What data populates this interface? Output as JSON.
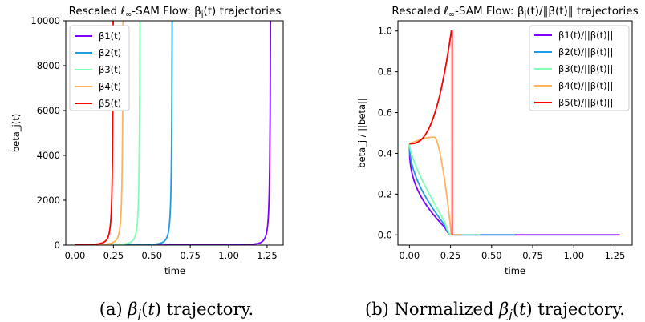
{
  "chart_data": [
    {
      "type": "line",
      "title": "Rescaled ℓ∞-SAM Flow: βj(t) trajectories",
      "xlabel": "time",
      "ylabel": "beta_j(t)",
      "xlim": [
        -0.06,
        1.355
      ],
      "ylim": [
        0,
        10000
      ],
      "xticks": [
        "0.00",
        "0.25",
        "0.50",
        "0.75",
        "1.00",
        "1.25"
      ],
      "yticks": [
        "0",
        "2000",
        "4000",
        "6000",
        "8000",
        "10000"
      ],
      "legend_position": "upper-left",
      "grid": false,
      "series": [
        {
          "name": "β1(t)",
          "color": "#7f00ff",
          "blowup": 1.28
        },
        {
          "name": "β2(t)",
          "color": "#1e9ce6",
          "blowup": 0.64
        },
        {
          "name": "β3(t)",
          "color": "#80ffb4",
          "blowup": 0.43
        },
        {
          "name": "β4(t)",
          "color": "#ffb360",
          "blowup": 0.32
        },
        {
          "name": "β5(t)",
          "color": "#ff0000",
          "blowup": 0.256
        }
      ]
    },
    {
      "type": "line",
      "title": "Rescaled ℓ∞-SAM Flow: βj(t)/‖β(t)‖ trajectories",
      "xlabel": "time",
      "ylabel": "beta_j / ||beta||",
      "xlim": [
        -0.07,
        1.355
      ],
      "ylim": [
        -0.05,
        1.05
      ],
      "xticks": [
        "0.00",
        "0.25",
        "0.50",
        "0.75",
        "1.00",
        "1.25"
      ],
      "yticks": [
        "0.0",
        "0.2",
        "0.4",
        "0.6",
        "0.8",
        "1.0"
      ],
      "legend_position": "upper-right",
      "grid": false,
      "series": [
        {
          "name": "β1(t)/||β(t)||",
          "color": "#7f00ff",
          "end": 1.28
        },
        {
          "name": "β2(t)/||β(t)||",
          "color": "#1e9ce6",
          "end": 0.64
        },
        {
          "name": "β3(t)/||β(t)||",
          "color": "#80ffb4",
          "end": 0.43
        },
        {
          "name": "β4(t)/||β(t)||",
          "color": "#ffb360",
          "end": 0.32
        },
        {
          "name": "β5(t)/||β(t)||",
          "color": "#ff0000",
          "end": 0.26
        }
      ]
    }
  ],
  "captions": [
    "(a) βj(t) trajectory.",
    "(b) Normalized βj(t) trajectory."
  ]
}
